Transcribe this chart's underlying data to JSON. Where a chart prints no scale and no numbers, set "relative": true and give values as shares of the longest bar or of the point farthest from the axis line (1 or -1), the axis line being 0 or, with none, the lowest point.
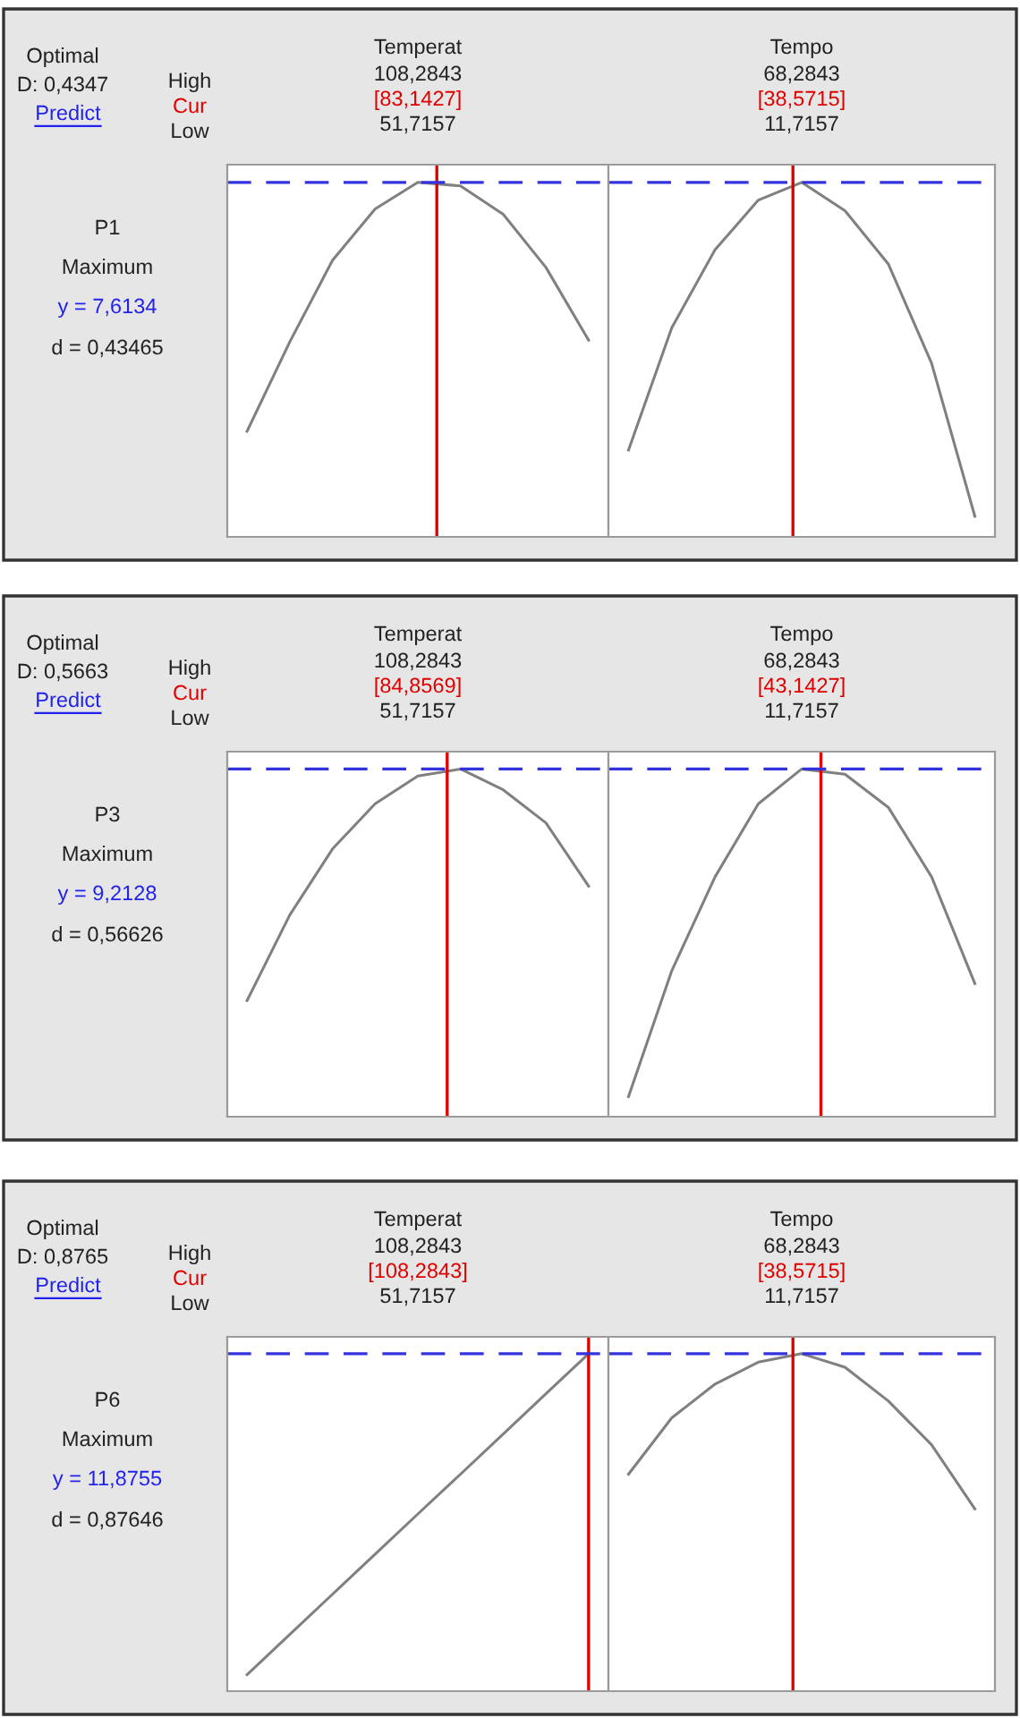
{
  "chart_data": [
    {
      "type": "line",
      "title": "Temperat",
      "annotations": [
        "Optimal",
        "D: 0,4347",
        "Predict",
        "High",
        "Cur",
        "Low",
        "P1",
        "Maximum",
        "y = 7,6134",
        "d = 0,43465",
        "108,2843",
        "[83,1427]",
        "51,7157"
      ],
      "relative": true,
      "tick_labels": false,
      "categories": [
        null,
        null,
        null,
        null,
        null,
        null,
        null,
        null,
        null
      ],
      "series": [
        {
          "color": "#808080",
          "values": [
            0.298,
            0.55,
            0.78,
            0.925,
            1,
            0.99,
            0.91,
            0.76,
            0.555
          ]
        }
      ],
      "ref_lines": [
        {
          "axis": "y",
          "value": 1,
          "color": "#3333dd",
          "line_style": "dashed"
        }
      ]
    },
    {
      "type": "line",
      "title": "Tempo",
      "annotations": [
        "68,2843",
        "[38,5715]",
        "11,7157"
      ],
      "relative": true,
      "tick_labels": false,
      "categories": [
        null,
        null,
        null,
        null,
        null,
        null,
        null,
        null,
        null
      ],
      "series": [
        {
          "color": "#808080",
          "values": [
            0.245,
            0.59,
            0.81,
            0.95,
            1,
            0.92,
            0.77,
            0.49,
            0.058
          ]
        }
      ],
      "ref_lines": [
        {
          "axis": "y",
          "value": 1,
          "color": "#3333dd",
          "line_style": "dashed"
        }
      ]
    },
    {
      "type": "line",
      "title": "Temperat",
      "annotations": [
        "Optimal",
        "D: 0,5663",
        "Predict",
        "High",
        "Cur",
        "Low",
        "P3",
        "Maximum",
        "y = 9,2128",
        "d = 0,56626",
        "108,2843",
        "[84,8569]",
        "51,7157"
      ],
      "relative": true,
      "tick_labels": false,
      "categories": [
        null,
        null,
        null,
        null,
        null,
        null,
        null,
        null,
        null
      ],
      "series": [
        {
          "color": "#808080",
          "values": [
            0.334,
            0.58,
            0.77,
            0.9,
            0.98,
            1,
            0.94,
            0.845,
            0.663
          ]
        }
      ],
      "ref_lines": [
        {
          "axis": "y",
          "value": 1,
          "color": "#3333dd",
          "line_style": "dashed"
        }
      ]
    },
    {
      "type": "line",
      "title": "Tempo",
      "annotations": [
        "68,2843",
        "[43,1427]",
        "11,7157"
      ],
      "relative": true,
      "tick_labels": false,
      "categories": [
        null,
        null,
        null,
        null,
        null,
        null,
        null,
        null,
        null
      ],
      "series": [
        {
          "color": "#808080",
          "values": [
            0.058,
            0.42,
            0.69,
            0.9,
            1,
            0.985,
            0.89,
            0.69,
            0.383
          ]
        }
      ],
      "ref_lines": [
        {
          "axis": "y",
          "value": 1,
          "color": "#3333dd",
          "line_style": "dashed"
        }
      ]
    },
    {
      "type": "line",
      "title": "Temperat",
      "annotations": [
        "Optimal",
        "D: 0,8765",
        "Predict",
        "High",
        "Cur",
        "Low",
        "P6",
        "Maximum",
        "y = 11,8755",
        "d = 0,87646",
        "108,2843",
        "[108,2843]",
        "51,7157"
      ],
      "relative": true,
      "tick_labels": false,
      "categories": [
        null,
        null,
        null,
        null,
        null,
        null,
        null,
        null,
        null
      ],
      "series": [
        {
          "color": "#808080",
          "values": [
            0.049,
            0.168,
            0.287,
            0.406,
            0.525,
            0.643,
            0.762,
            0.881,
            1
          ]
        }
      ],
      "ref_lines": [
        {
          "axis": "y",
          "value": 1,
          "color": "#3333dd",
          "line_style": "dashed"
        }
      ]
    },
    {
      "type": "line",
      "title": "Tempo",
      "annotations": [
        "68,2843",
        "[38,5715]",
        "11,7157"
      ],
      "relative": true,
      "tick_labels": false,
      "categories": [
        null,
        null,
        null,
        null,
        null,
        null,
        null,
        null,
        null
      ],
      "series": [
        {
          "color": "#808080",
          "values": [
            0.643,
            0.81,
            0.91,
            0.975,
            1,
            0.96,
            0.86,
            0.73,
            0.54
          ]
        }
      ],
      "ref_lines": [
        {
          "axis": "y",
          "value": 1,
          "color": "#3333dd",
          "line_style": "dashed"
        }
      ]
    }
  ]
}
